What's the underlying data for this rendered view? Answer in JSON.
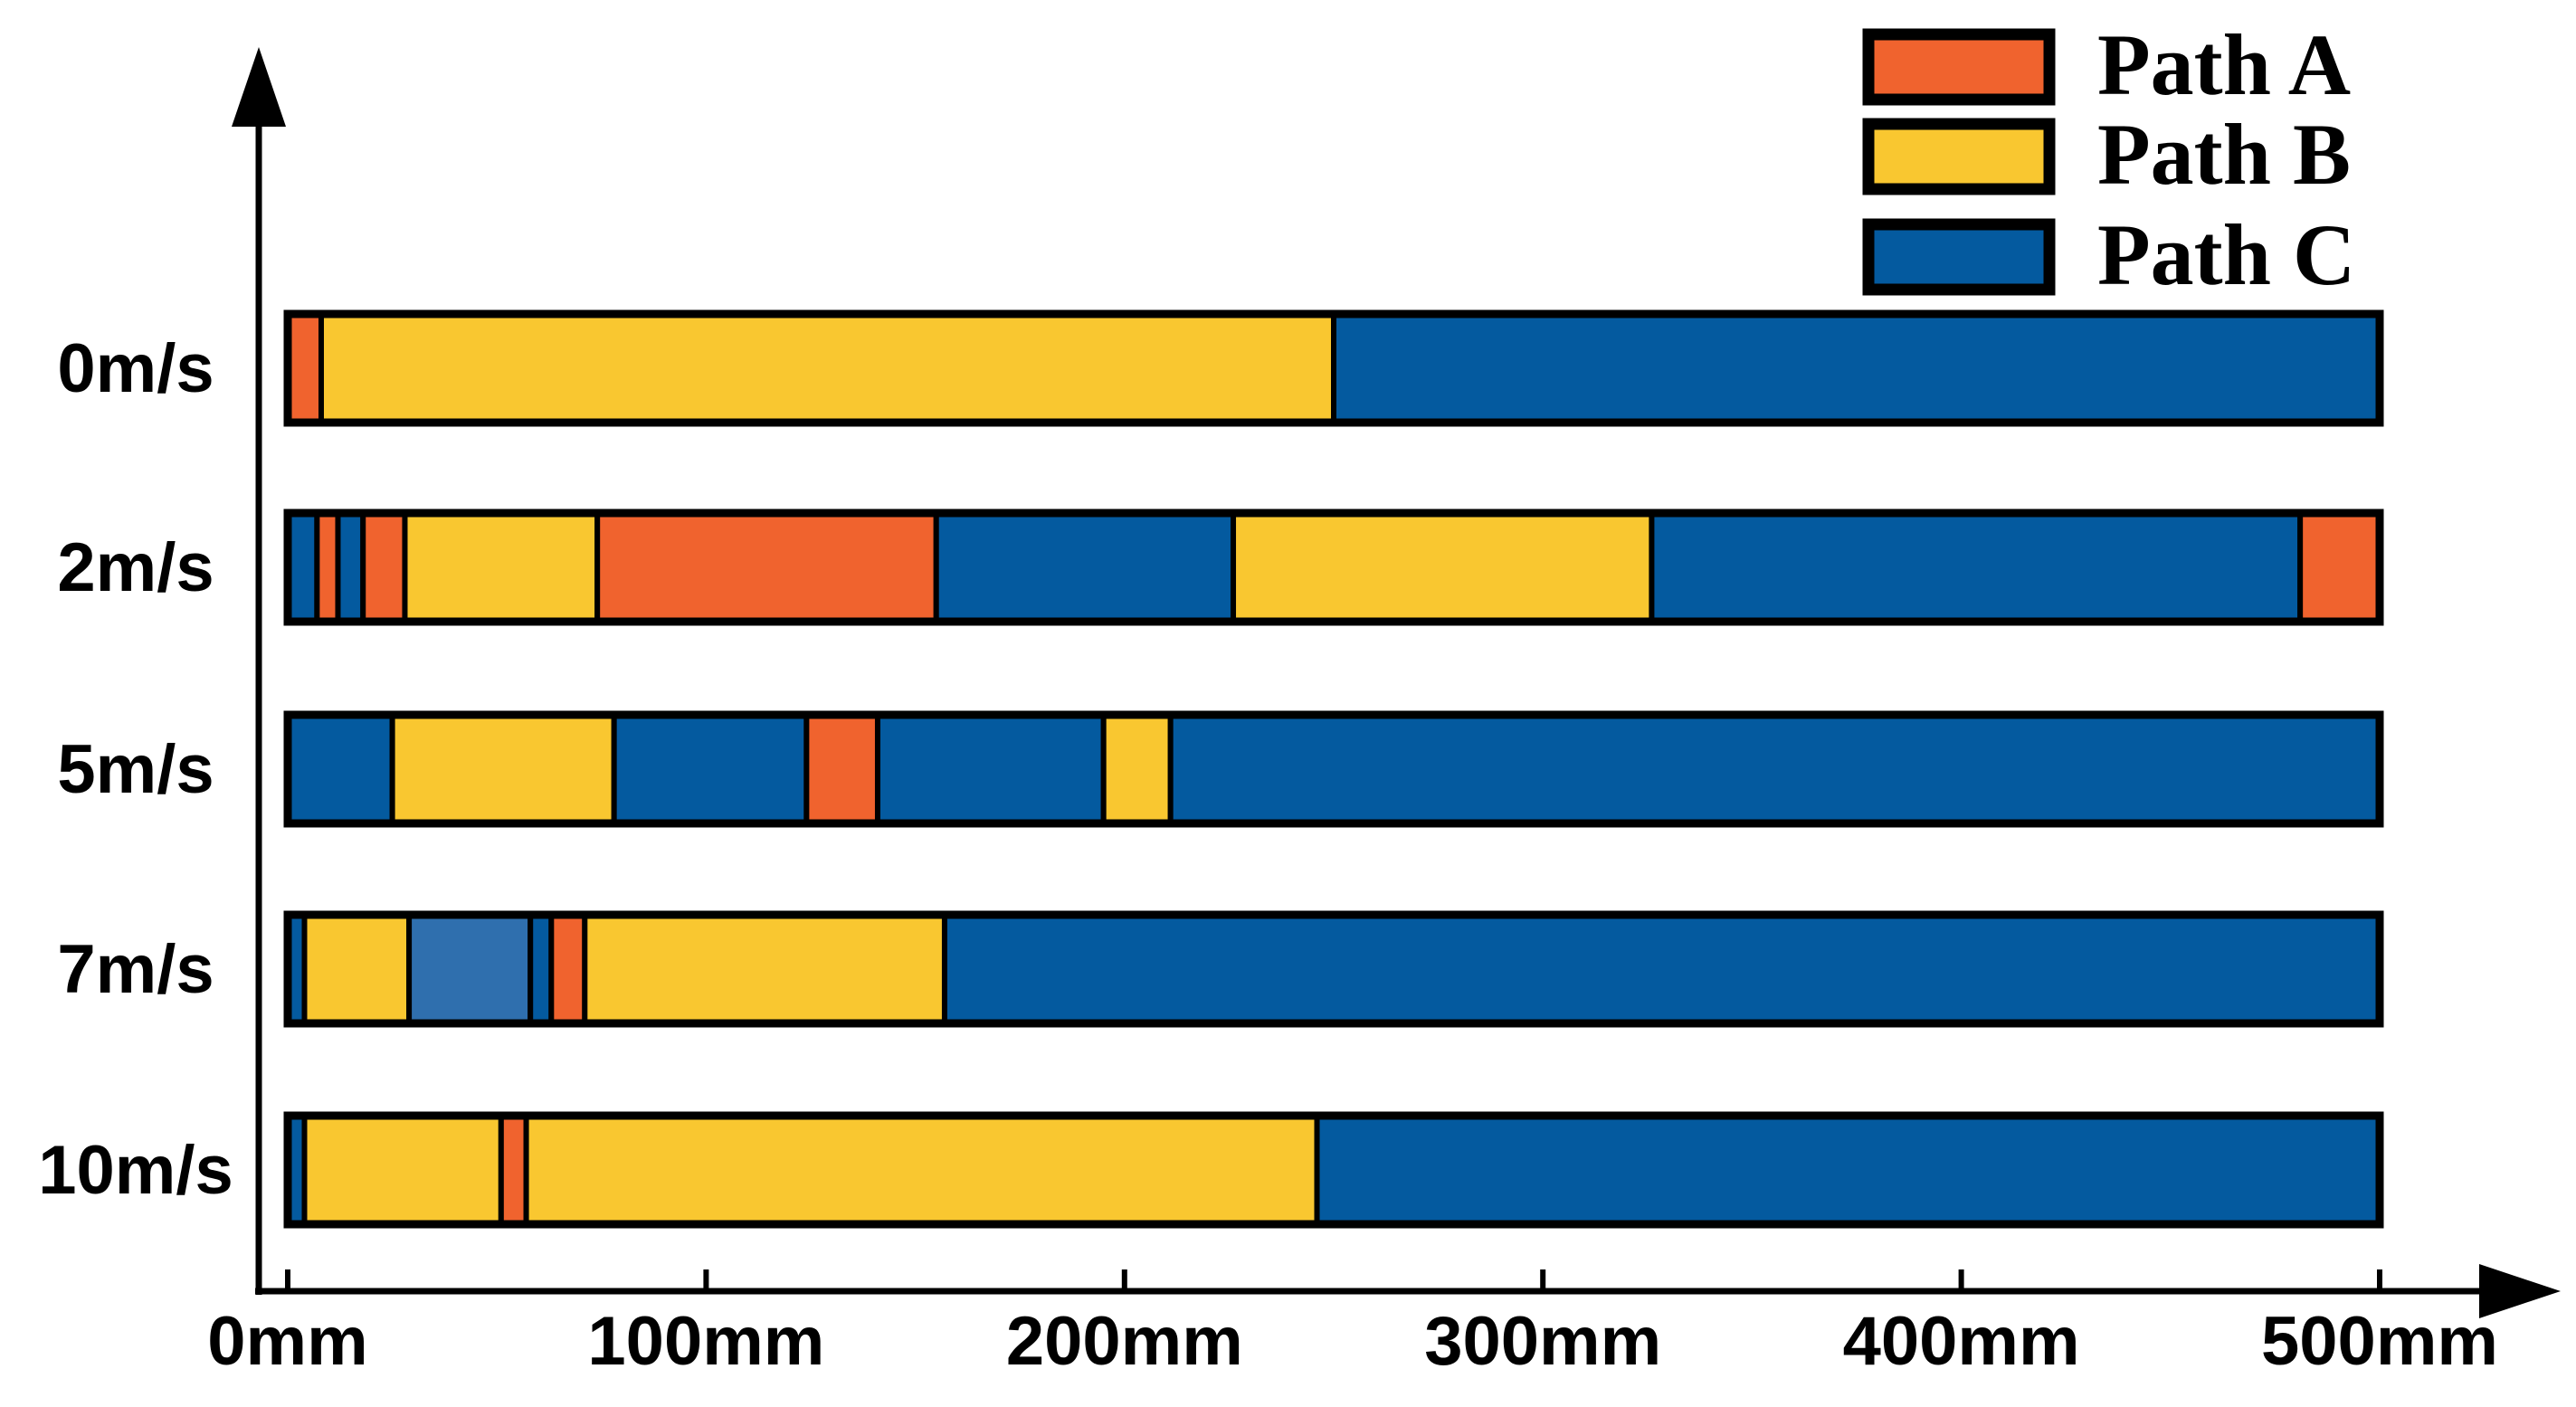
{
  "chart_data": {
    "type": "bar",
    "orientation": "horizontal-stacked",
    "x_unit": "mm",
    "xlim": [
      0,
      500
    ],
    "x_ticks": [
      {
        "value": 0,
        "label": "0mm"
      },
      {
        "value": 100,
        "label": "100mm"
      },
      {
        "value": 200,
        "label": "200mm"
      },
      {
        "value": 300,
        "label": "300mm"
      },
      {
        "value": 400,
        "label": "400mm"
      },
      {
        "value": 500,
        "label": "500mm"
      }
    ],
    "categories": [
      "0m/s",
      "2m/s",
      "5m/s",
      "7m/s",
      "10m/s"
    ],
    "legend": {
      "placement": "top-right",
      "entries": [
        {
          "key": "A",
          "label": "Path A",
          "color": "#f0632e"
        },
        {
          "key": "B",
          "label": "Path B",
          "color": "#f9c730"
        },
        {
          "key": "C",
          "label": "Path C",
          "color": "#045a9f"
        }
      ]
    },
    "colors": {
      "A": "#f0632e",
      "B": "#f9c730",
      "C": "#045a9f",
      "C_light": "#2f6fae",
      "outline": "#000000"
    },
    "rows": [
      {
        "label": "0m/s",
        "segments": [
          {
            "path": "A",
            "start": 0,
            "end": 8
          },
          {
            "path": "B",
            "start": 8,
            "end": 250
          },
          {
            "path": "C",
            "start": 250,
            "end": 500
          }
        ]
      },
      {
        "label": "2m/s",
        "segments": [
          {
            "path": "C",
            "start": 0,
            "end": 7
          },
          {
            "path": "A",
            "start": 7,
            "end": 12
          },
          {
            "path": "C",
            "start": 12,
            "end": 18
          },
          {
            "path": "A",
            "start": 18,
            "end": 28
          },
          {
            "path": "B",
            "start": 28,
            "end": 74
          },
          {
            "path": "A",
            "start": 74,
            "end": 155
          },
          {
            "path": "C",
            "start": 155,
            "end": 226
          },
          {
            "path": "B",
            "start": 226,
            "end": 326
          },
          {
            "path": "C",
            "start": 326,
            "end": 481
          },
          {
            "path": "A",
            "start": 481,
            "end": 500
          }
        ]
      },
      {
        "label": "5m/s",
        "segments": [
          {
            "path": "C",
            "start": 0,
            "end": 25
          },
          {
            "path": "B",
            "start": 25,
            "end": 78
          },
          {
            "path": "C",
            "start": 78,
            "end": 124
          },
          {
            "path": "A",
            "start": 124,
            "end": 141
          },
          {
            "path": "C",
            "start": 141,
            "end": 195
          },
          {
            "path": "B",
            "start": 195,
            "end": 211
          },
          {
            "path": "C",
            "start": 211,
            "end": 500
          }
        ]
      },
      {
        "label": "7m/s",
        "segments": [
          {
            "path": "C",
            "start": 0,
            "end": 4
          },
          {
            "path": "B",
            "start": 4,
            "end": 29
          },
          {
            "path": "C_light",
            "start": 29,
            "end": 58
          },
          {
            "path": "C",
            "start": 58,
            "end": 63
          },
          {
            "path": "A",
            "start": 63,
            "end": 71
          },
          {
            "path": "B",
            "start": 71,
            "end": 157
          },
          {
            "path": "C",
            "start": 157,
            "end": 500
          }
        ]
      },
      {
        "label": "10m/s",
        "segments": [
          {
            "path": "C",
            "start": 0,
            "end": 4
          },
          {
            "path": "B",
            "start": 4,
            "end": 51
          },
          {
            "path": "A",
            "start": 51,
            "end": 57
          },
          {
            "path": "B",
            "start": 57,
            "end": 246
          },
          {
            "path": "C",
            "start": 246,
            "end": 500
          }
        ]
      }
    ]
  }
}
